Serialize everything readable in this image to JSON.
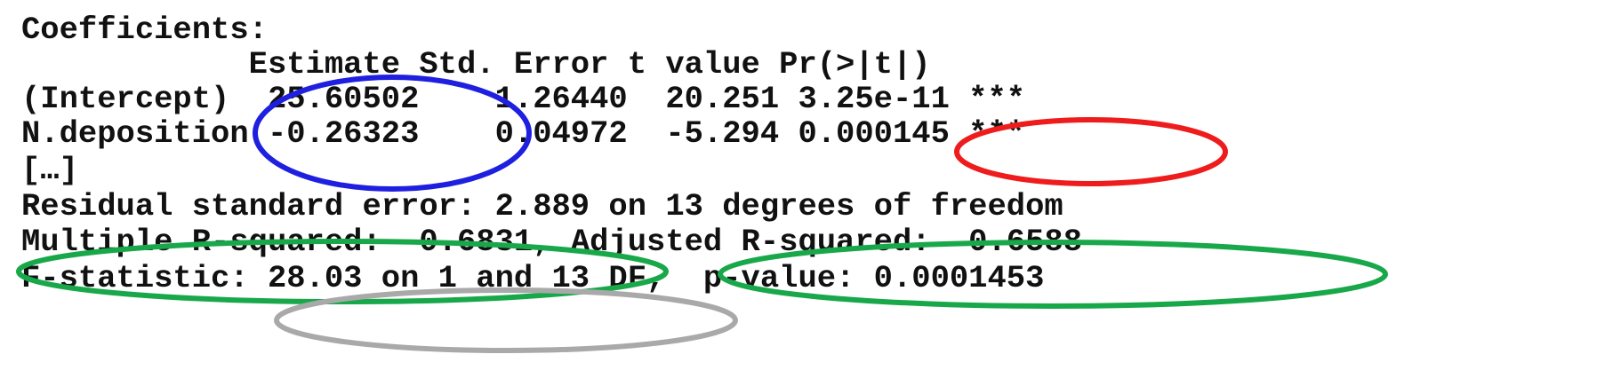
{
  "output": {
    "heading": "Coefficients:",
    "columns_header": "            Estimate Std. Error t value Pr(>|t|)",
    "rows": [
      "(Intercept)  25.60502    1.26440  20.251 3.25e-11 ***",
      "N.deposition -0.26323    0.04972  -5.294 0.000145 ***"
    ],
    "ellipsis": "[…]",
    "residual_line": "Residual standard error: 2.889 on 13 degrees of freedom",
    "rsquared_line": "Multiple R-squared:  0.6831,\tAdjusted R-squared:  0.6588",
    "fstat_line": "F-statistic: 28.03 on 1 and 13 DF,  p-value: 0.0001453"
  },
  "highlights": [
    {
      "name": "estimates-highlight",
      "color": "#1f1fe0"
    },
    {
      "name": "pvalue-highlight",
      "color": "#ee1c1c"
    },
    {
      "name": "multiple-rsquared-highlight",
      "color": "#18a84a"
    },
    {
      "name": "adjusted-rsquared-highlight",
      "color": "#18a84a"
    },
    {
      "name": "fstatistic-highlight",
      "color": "#a9a9a9"
    }
  ]
}
